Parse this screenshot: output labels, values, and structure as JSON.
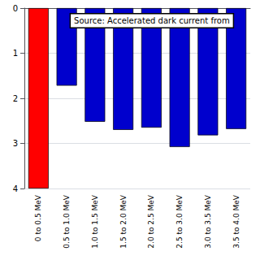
{
  "chart_data": {
    "type": "bar",
    "categories": [
      "0 to 0.5 MeV",
      "0.5 to 1.0 MeV",
      "1.0 to 1.5 MeV",
      "1.5 to 2.0 MeV",
      "2.0 to 2.5 MeV",
      "2.5 to 3.0 MeV",
      "3.0 to 3.5 MeV",
      "3.5 to 4.0 MeV"
    ],
    "values": [
      4.0,
      1.72,
      2.52,
      2.7,
      2.65,
      3.08,
      2.82,
      2.68
    ],
    "colors": [
      "#ff0000",
      "#0000cd",
      "#0000cd",
      "#0000cd",
      "#0000cd",
      "#0000cd",
      "#0000cd",
      "#0000cd"
    ],
    "ylim": [
      4,
      0
    ],
    "yticks": [
      0,
      1,
      2,
      3,
      4
    ],
    "grid": true,
    "annotation": "Source: Accelerated dark current from"
  }
}
